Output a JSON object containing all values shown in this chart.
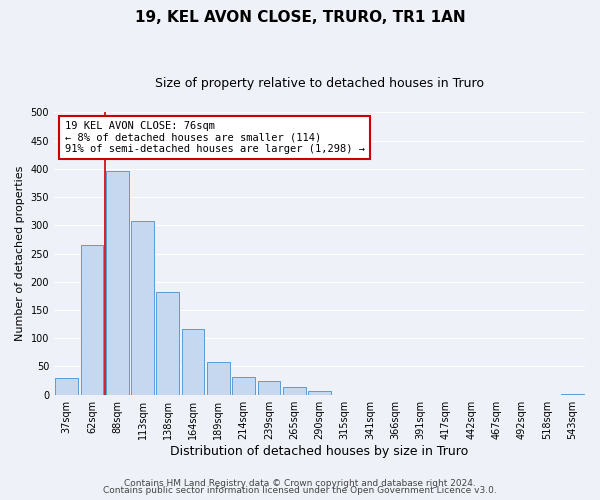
{
  "title": "19, KEL AVON CLOSE, TRURO, TR1 1AN",
  "subtitle": "Size of property relative to detached houses in Truro",
  "xlabel": "Distribution of detached houses by size in Truro",
  "ylabel": "Number of detached properties",
  "bar_labels": [
    "37sqm",
    "62sqm",
    "88sqm",
    "113sqm",
    "138sqm",
    "164sqm",
    "189sqm",
    "214sqm",
    "239sqm",
    "265sqm",
    "290sqm",
    "315sqm",
    "341sqm",
    "366sqm",
    "391sqm",
    "417sqm",
    "442sqm",
    "467sqm",
    "492sqm",
    "518sqm",
    "543sqm"
  ],
  "bar_values": [
    30,
    265,
    396,
    308,
    182,
    116,
    58,
    32,
    25,
    14,
    6,
    0,
    0,
    0,
    0,
    0,
    0,
    0,
    0,
    0,
    2
  ],
  "bar_color": "#c5d8f0",
  "bar_edge_color": "#5b9bd5",
  "ylim": [
    0,
    500
  ],
  "yticks": [
    0,
    50,
    100,
    150,
    200,
    250,
    300,
    350,
    400,
    450,
    500
  ],
  "vline_color": "#cc0000",
  "annotation_text": "19 KEL AVON CLOSE: 76sqm\n← 8% of detached houses are smaller (114)\n91% of semi-detached houses are larger (1,298) →",
  "annotation_box_color": "#ffffff",
  "annotation_box_edge_color": "#cc0000",
  "footer_line1": "Contains HM Land Registry data © Crown copyright and database right 2024.",
  "footer_line2": "Contains public sector information licensed under the Open Government Licence v3.0.",
  "background_color": "#eef2f8",
  "grid_color": "#ffffff",
  "title_fontsize": 11,
  "subtitle_fontsize": 9,
  "xlabel_fontsize": 9,
  "ylabel_fontsize": 8,
  "tick_fontsize": 7,
  "footer_fontsize": 6.5,
  "ann_fontsize": 7.5
}
